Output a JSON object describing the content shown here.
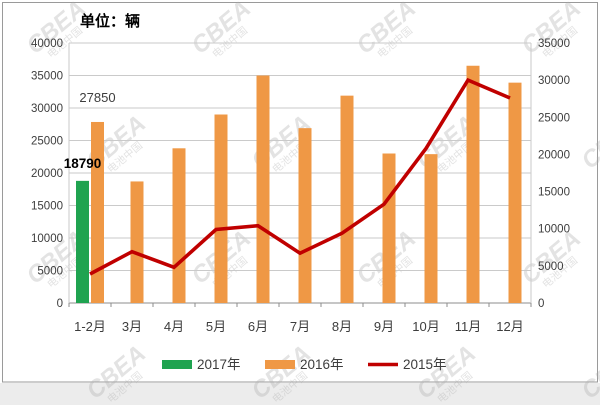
{
  "title": {
    "text": "单位：辆"
  },
  "watermark": {
    "line1": "CBEA",
    "line2": "电池中国"
  },
  "page": {
    "border_color": "#9a9a9a",
    "bottom_strip_color": "#ececec",
    "watermark_color": "#a9a9a9"
  },
  "chart_data": {
    "type": "bar+line combo, dual axis",
    "categories": [
      "1-2月",
      "3月",
      "4月",
      "5月",
      "6月",
      "7月",
      "8月",
      "9月",
      "10月",
      "11月",
      "12月"
    ],
    "series": [
      {
        "name": "2017年",
        "type": "bar",
        "axis": "left",
        "color": "#1FA350",
        "values": [
          18790,
          null,
          null,
          null,
          null,
          null,
          null,
          null,
          null,
          null,
          null
        ]
      },
      {
        "name": "2016年",
        "type": "bar",
        "axis": "left",
        "color": "#EF9845",
        "values": [
          27850,
          18700,
          23800,
          29000,
          35000,
          26900,
          31900,
          23000,
          22900,
          36500,
          33900
        ]
      },
      {
        "name": "2015年",
        "type": "line",
        "axis": "right",
        "color": "#C00000",
        "values": [
          3900,
          6900,
          4800,
          9900,
          10400,
          6700,
          9400,
          13300,
          20800,
          30000,
          27600
        ]
      }
    ],
    "left_axis": {
      "min": 0,
      "max": 40000,
      "step": 5000,
      "ticks": [
        "0",
        "5000",
        "10000",
        "15000",
        "20000",
        "25000",
        "30000",
        "35000",
        "40000"
      ]
    },
    "right_axis": {
      "min": 0,
      "max": 35000,
      "step": 5000,
      "ticks": [
        "0",
        "5000",
        "10000",
        "15000",
        "20000",
        "25000",
        "30000",
        "35000"
      ]
    },
    "data_labels": [
      {
        "series": 1,
        "index": 0,
        "text": "27850",
        "bold": false
      },
      {
        "series": 0,
        "index": 0,
        "text": "18790",
        "bold": true
      }
    ],
    "legend": [
      "2017年",
      "2016年",
      "2015年"
    ],
    "legend_position": "bottom",
    "grid": true,
    "grid_color": "#cacaca",
    "axis_line_color": "#8c8c8c",
    "tick_text_color": "#3d3d3d"
  }
}
